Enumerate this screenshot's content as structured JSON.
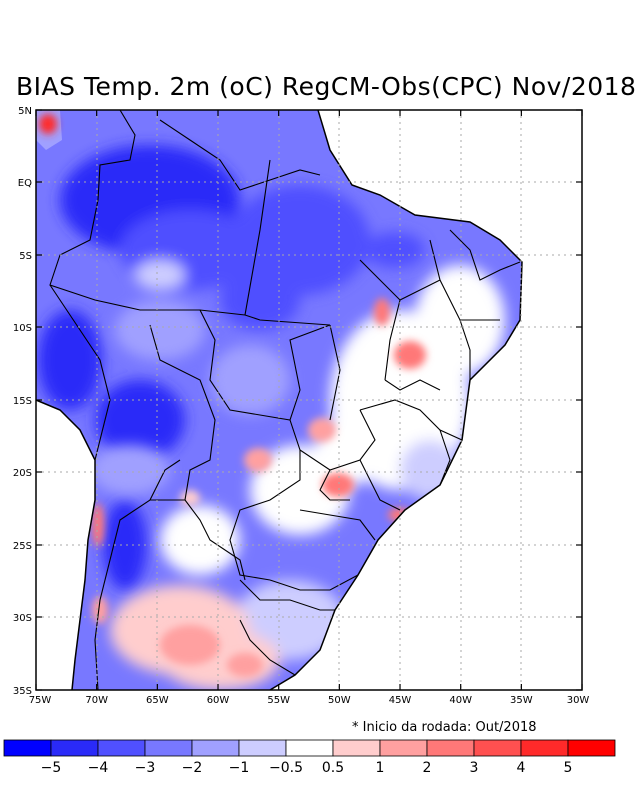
{
  "title": "BIAS Temp. 2m (oC) RegCM-Obs(CPC) Nov/2018",
  "note": "* Inicio da rodada: Out/2018",
  "axes": {
    "lat_ticks": [
      "5N",
      "EQ",
      "5S",
      "10S",
      "15S",
      "20S",
      "25S",
      "30S",
      "35S"
    ],
    "lon_ticks": [
      "75W",
      "70W",
      "65W",
      "60W",
      "55W",
      "50W",
      "45W",
      "40W",
      "35W",
      "30W"
    ]
  },
  "colorbar": {
    "colors": [
      "#0000ff",
      "#2a2af8",
      "#5050ff",
      "#7878ff",
      "#a0a0ff",
      "#cdcdff",
      "#ffffff",
      "#ffcdcd",
      "#ffa0a0",
      "#ff7878",
      "#ff5050",
      "#ff2a2a",
      "#ff0000"
    ],
    "labels": [
      "−5",
      "−4",
      "−3",
      "−2",
      "−1",
      "−0.5",
      "0.5",
      "1",
      "2",
      "3",
      "4",
      "5"
    ]
  }
}
